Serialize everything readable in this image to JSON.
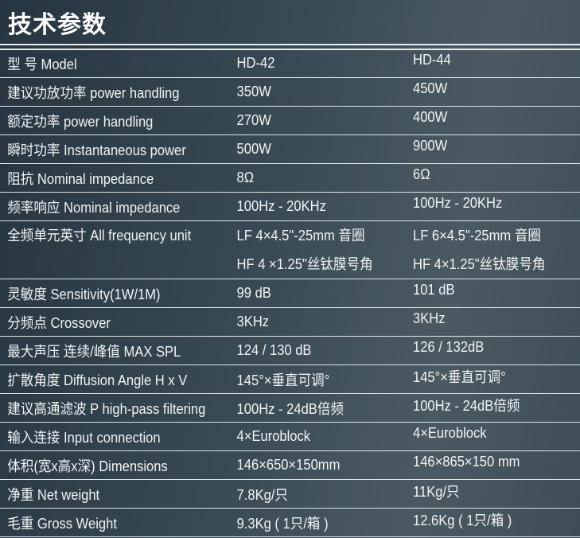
{
  "title": "技术参数",
  "rows": [
    {
      "label": "型 号 Model",
      "a": "HD-42",
      "b": "HD-44"
    },
    {
      "label": "建议功放功率 power handling",
      "a": "350W",
      "b": "450W"
    },
    {
      "label": "额定功率 power handling",
      "a": "270W",
      "b": "400W"
    },
    {
      "label": "瞬时功率 Instantaneous power",
      "a": "500W",
      "b": "900W"
    },
    {
      "label": "阻抗 Nominal impedance",
      "a": "8Ω",
      "b": "6Ω"
    },
    {
      "label": "频率响应 Nominal impedance",
      "a": "100Hz - 20KHz",
      "b": "100Hz - 20KHz"
    },
    {
      "label": "全频单元英寸 All frequency unit",
      "a": "LF 4×4.5\"-25mm 音圈",
      "a2": "HF 4 ×1.25\"丝钛膜号角",
      "b": "LF 6×4.5\"-25mm 音圈",
      "b2": "HF 4×1.25\"丝钛膜号角"
    },
    {
      "label": "灵敏度 Sensitivity(1W/1M)",
      "a": "99 dB",
      "b": "101 dB"
    },
    {
      "label": "分频点 Crossover",
      "a": "3KHz",
      "b": "3KHz"
    },
    {
      "label": "最大声压 连续/峰值 MAX SPL",
      "a": "124 / 130 dB",
      "b": "126 / 132dB"
    },
    {
      "label": "扩散角度 Diffusion Angle H x V",
      "a": "145°×垂直可调°",
      "b": "145°×垂直可调°"
    },
    {
      "label": "建议高通滤波 P high-pass filtering",
      "a": "100Hz - 24dB倍频",
      "b": "100Hz - 24dB倍频"
    },
    {
      "label": "输入连接 Input connection",
      "a": "4×Euroblock",
      "b": "4×Euroblock"
    },
    {
      "label": "体积(宽x高x深) Dimensions",
      "a": "146×650×150mm",
      "b": "146×865×150 mm"
    },
    {
      "label": "净重 Net weight",
      "a": "7.8Kg/只",
      "b": "11Kg/只"
    },
    {
      "label": "毛重 Gross Weight",
      "a": "9.3Kg ( 1只/箱 )",
      "b": "12.6Kg ( 1只/箱 )"
    }
  ]
}
